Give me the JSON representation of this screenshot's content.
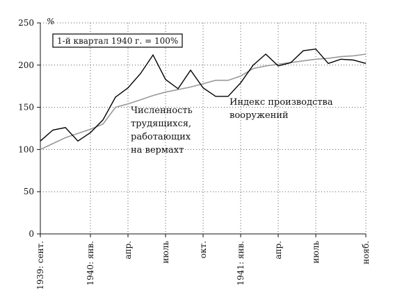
{
  "chart_data": {
    "type": "line",
    "title": "",
    "ylabel": "%",
    "xlabel": "",
    "ylim": [
      0,
      250
    ],
    "yticks": [
      0,
      50,
      100,
      150,
      200,
      250
    ],
    "grid": true,
    "x_count": 27,
    "x_ticks": [
      {
        "i": 0,
        "label": "1939: сент."
      },
      {
        "i": 4,
        "label": "1940: янв."
      },
      {
        "i": 7,
        "label": "апр."
      },
      {
        "i": 10,
        "label": "июль"
      },
      {
        "i": 13,
        "label": "окт."
      },
      {
        "i": 16,
        "label": "1941: янв."
      },
      {
        "i": 19,
        "label": "апр."
      },
      {
        "i": 22,
        "label": "июль"
      },
      {
        "i": 26,
        "label": "нояб."
      }
    ],
    "legend": {
      "text": "1-й квартал 1940 г. = 100%",
      "position": "top-left"
    },
    "annotations": [
      {
        "id": "workers",
        "lines": [
          "Численность",
          "трудящихся,",
          "работающих",
          "на вермахт"
        ]
      },
      {
        "id": "arms",
        "lines": [
          "Индекс производства",
          "вооружений"
        ]
      }
    ],
    "series": [
      {
        "key": "arms",
        "color": "#000000",
        "values": [
          110,
          123,
          126,
          110,
          120,
          135,
          162,
          173,
          190,
          212,
          183,
          172,
          194,
          173,
          163,
          163,
          179,
          200,
          213,
          199,
          203,
          217,
          219,
          202,
          207,
          206,
          202
        ]
      },
      {
        "key": "workers",
        "color": "#999999",
        "values": [
          100,
          107,
          114,
          119,
          124,
          130,
          150,
          154,
          159,
          164,
          168,
          171,
          174,
          178,
          182,
          182,
          187,
          196,
          199,
          201,
          203,
          205,
          207,
          208,
          210,
          211,
          213
        ]
      }
    ]
  }
}
